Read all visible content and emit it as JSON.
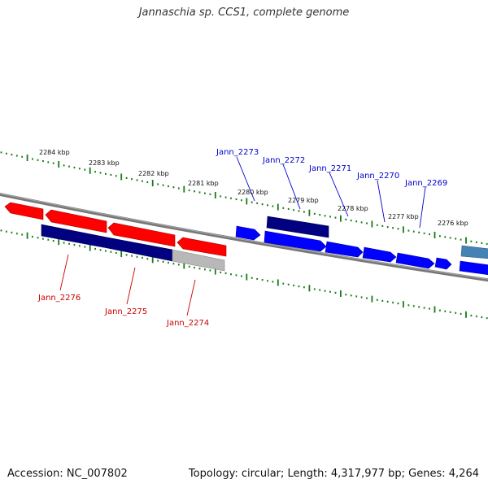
{
  "title": "Jannaschia sp. CCS1, complete genome",
  "footer": {
    "accession": "Accession: NC_007802",
    "summary": "Topology: circular; Length: 4,317,977 bp; Genes: 4,264"
  },
  "colors": {
    "backbone": "#808080",
    "tick": "#1a7a1a",
    "forward_gene": "#0000ff",
    "forward_gene_dark": "#000080",
    "reverse_gene": "#ff0000",
    "reverse_gene_dark": "#000080",
    "pseudo_gene": "#b0b0b0",
    "other_gene": "#4682b4",
    "forward_label": "#0000cc",
    "reverse_label": "#cc0000"
  },
  "scale_labels": [
    "2284 kbp",
    "2283 kbp",
    "2282 kbp",
    "2281 kbp",
    "2280 kbp",
    "2279 kbp",
    "2278 kbp",
    "2277 kbp",
    "2276 kbp"
  ],
  "gene_labels": {
    "top": [
      "Jann_2273",
      "Jann_2272",
      "Jann_2271",
      "Jann_2270",
      "Jann_2269"
    ],
    "bottom": [
      "Jann_2276",
      "Jann_2275",
      "Jann_2274"
    ]
  }
}
